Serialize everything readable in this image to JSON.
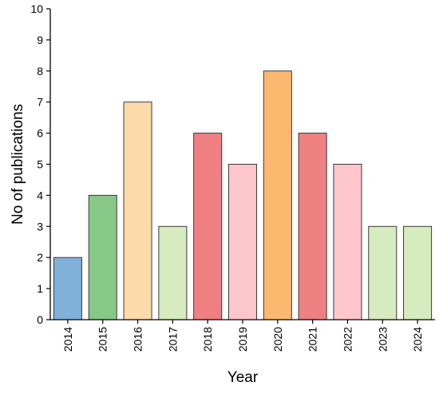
{
  "chart_data": {
    "type": "bar",
    "title": "",
    "xlabel": "Year",
    "ylabel": "No of publications",
    "categories": [
      "2014",
      "2015",
      "2016",
      "2017",
      "2018",
      "2019",
      "2020",
      "2021",
      "2022",
      "2023",
      "2024"
    ],
    "values": [
      2,
      4,
      7,
      3,
      6,
      5,
      8,
      6,
      5,
      3,
      3
    ],
    "bar_colors": [
      "#80B1D8",
      "#86C986",
      "#FDDAAA",
      "#D6EBBE",
      "#EF8082",
      "#FCC6CA",
      "#FCB86F",
      "#EF8082",
      "#FCC6CA",
      "#D6EBBE",
      "#D6EBBE"
    ],
    "bar_edge_color": "#3A3A3A",
    "ylim": [
      0,
      10
    ],
    "yticks": [
      0,
      1,
      2,
      3,
      4,
      5,
      6,
      7,
      8,
      9,
      10
    ],
    "grid": false,
    "legend": "none"
  }
}
